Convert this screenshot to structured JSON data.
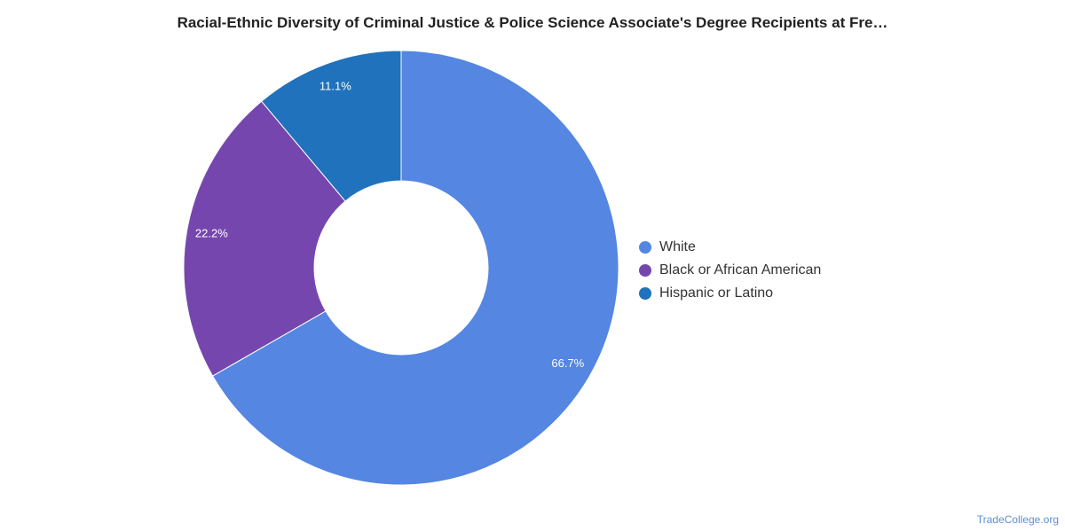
{
  "chart_data": {
    "type": "pie",
    "title": "Racial-Ethnic Diversity of Criminal Justice & Police Science Associate's Degree Recipients at Fre…",
    "donut": true,
    "legend_position": "right",
    "categories": [
      "White",
      "Black or African American",
      "Hispanic or Latino"
    ],
    "values": [
      66.7,
      22.2,
      11.1
    ],
    "labels": [
      "66.7%",
      "22.2%",
      "11.1%"
    ],
    "colors": [
      "#5486e2",
      "#7547ae",
      "#1f72bb"
    ]
  },
  "watermark": "TradeCollege.org"
}
